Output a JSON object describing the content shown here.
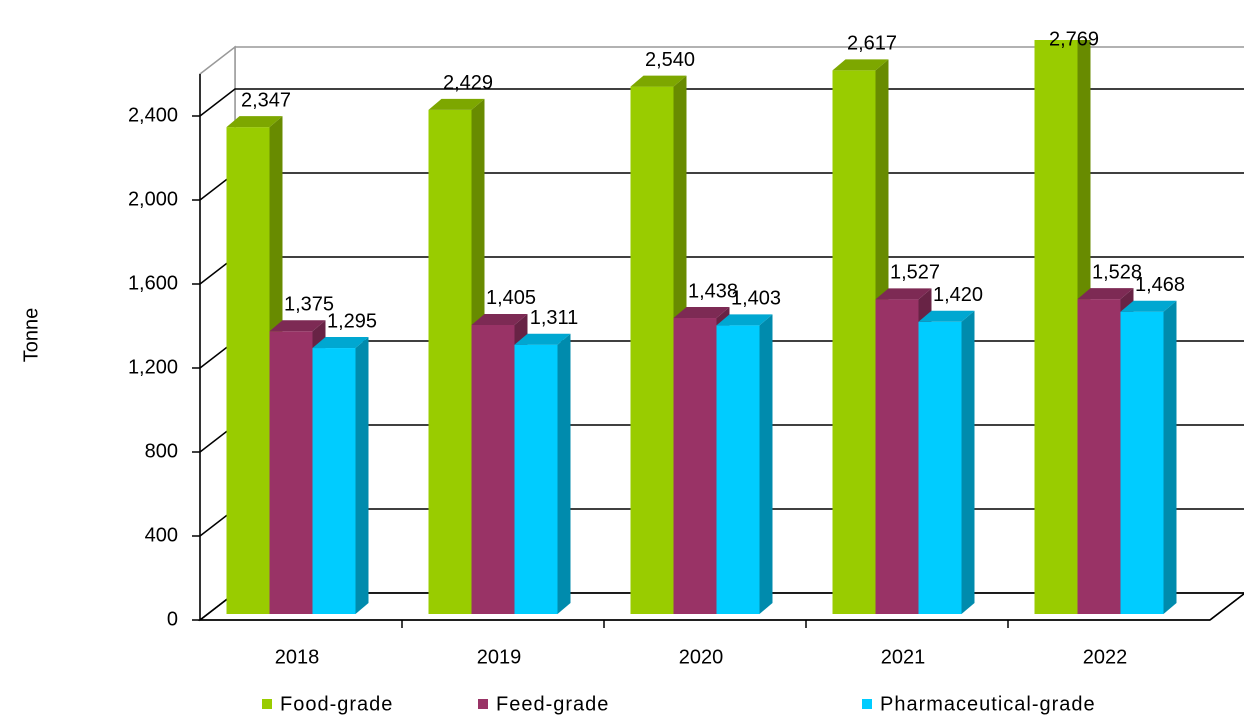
{
  "chart_data": {
    "type": "bar3d",
    "y_label": "Tonne",
    "categories": [
      "2018",
      "2019",
      "2020",
      "2021",
      "2022"
    ],
    "series": [
      {
        "name": "Food-grade",
        "color": "#99cc00",
        "values": [
          2347,
          2429,
          2540,
          2617,
          2769
        ],
        "value_labels": [
          "2,347",
          "2,429",
          "2,540",
          "2,617",
          "2,769"
        ]
      },
      {
        "name": "Feed-grade",
        "color": "#993366",
        "values": [
          1375,
          1405,
          1438,
          1527,
          1528
        ],
        "value_labels": [
          "1,375",
          "1,405",
          "1,438",
          "1,527",
          "1,528"
        ]
      },
      {
        "name": "Pharmaceutical-grade",
        "color": "#00ccff",
        "values": [
          1295,
          1311,
          1403,
          1420,
          1468
        ],
        "value_labels": [
          "1,295",
          "1,311",
          "1,403",
          "1,420",
          "1,468"
        ]
      }
    ],
    "ylim": [
      0,
      2600
    ],
    "yticks": [
      0,
      400,
      800,
      {
        "value": 1200,
        "label": "1,200"
      },
      {
        "value": 1600,
        "label": "1,600"
      },
      {
        "value": 2000,
        "label": "2,000"
      },
      {
        "value": 2400,
        "label": "2,400"
      }
    ],
    "grid": true
  }
}
